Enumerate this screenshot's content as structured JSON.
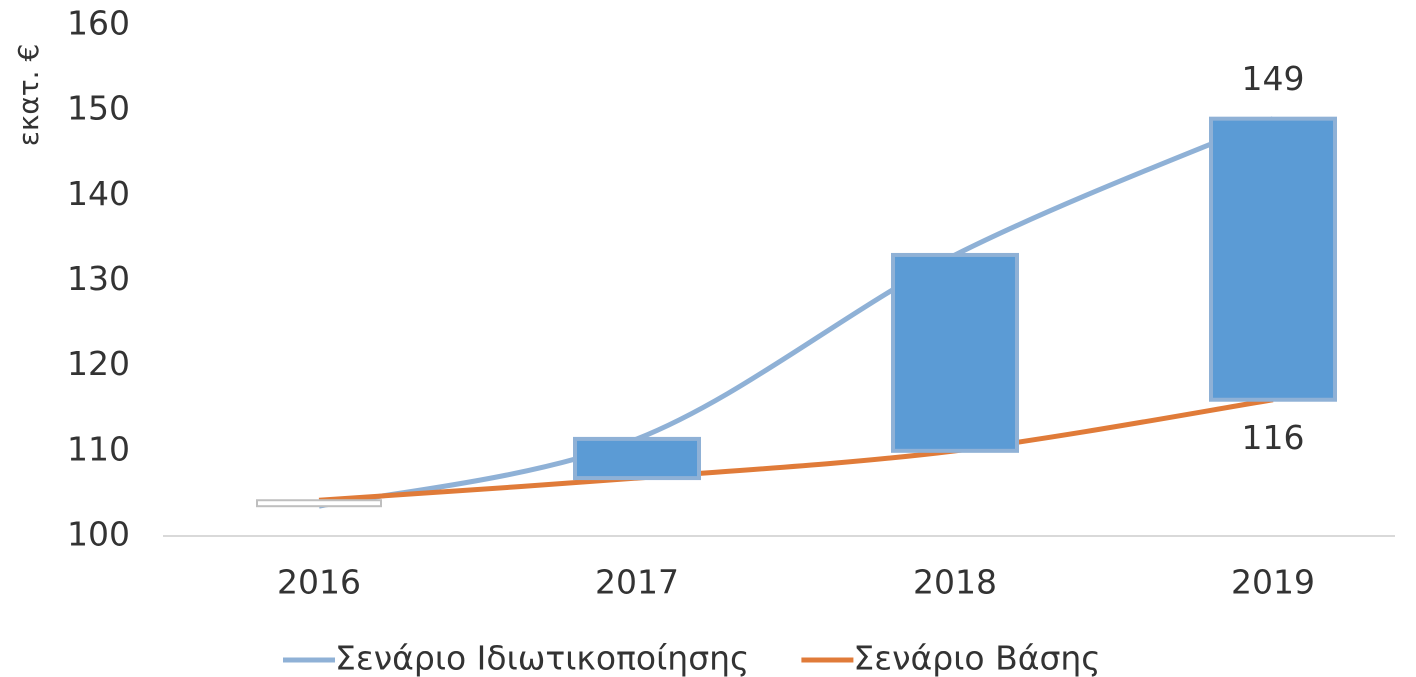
{
  "chart_data": {
    "type": "line",
    "y_label": "εκατ. €",
    "categories": [
      "2016",
      "2017",
      "2018",
      "2019"
    ],
    "series": [
      {
        "name": "Σενάριο Ιδιωτικοποίησης",
        "color": "#8fb1d6",
        "values": [
          103.5,
          111.4,
          133,
          149
        ],
        "smooth": true
      },
      {
        "name": "Σενάριο Βάσης",
        "color": "#e07b39",
        "values": [
          104.2,
          106.8,
          110,
          116
        ],
        "smooth": true
      }
    ],
    "updown_bars": true,
    "up_bar_color": "#5b9bd5",
    "down_bar_color": "#ffffff",
    "data_labels": [
      {
        "series": 0,
        "index": 3
      },
      {
        "series": 1,
        "index": 3
      }
    ],
    "ylim": [
      100,
      160
    ],
    "yticks": [
      100,
      110,
      120,
      130,
      140,
      150,
      160
    ],
    "grid": false,
    "legend": "bottom"
  }
}
